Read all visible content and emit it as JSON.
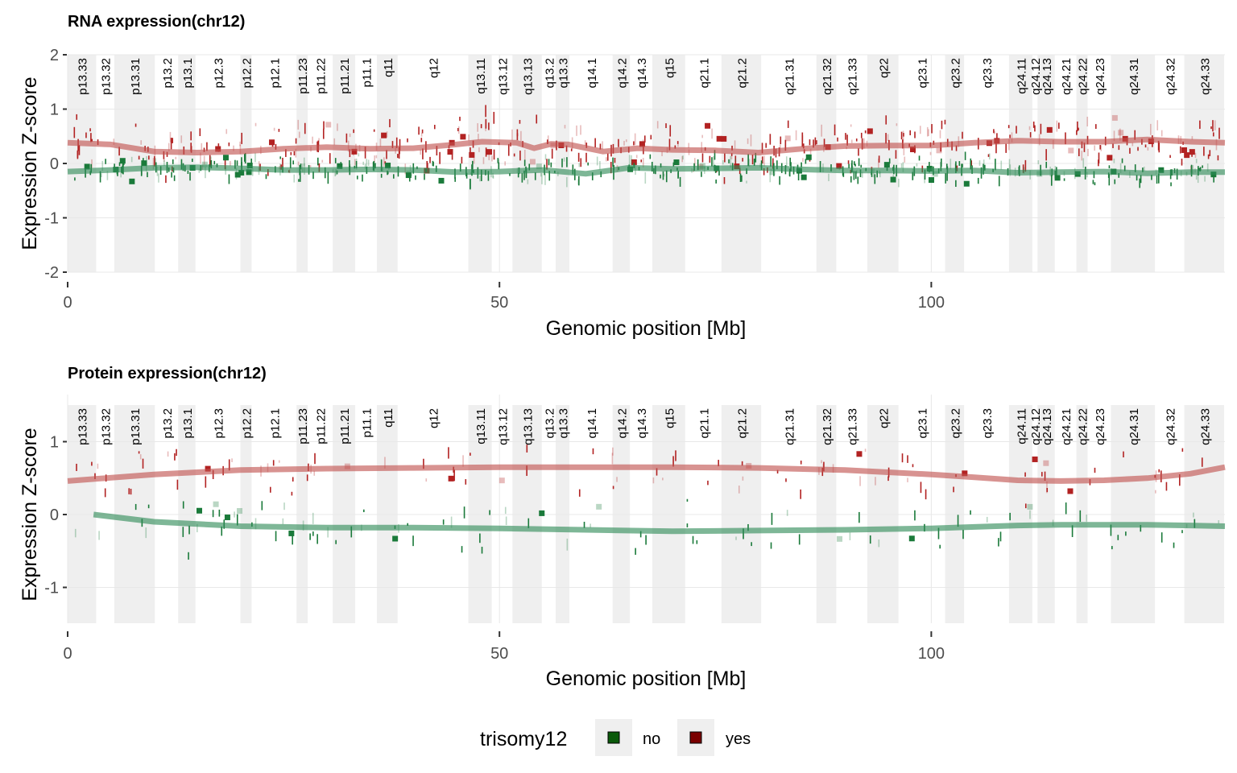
{
  "chart_data": [
    {
      "type": "scatter",
      "id": "rna",
      "title": "RNA expression(chr12)",
      "xlabel": "Genomic position [Mb]",
      "ylabel": "Expression Z-score",
      "xlim": [
        0,
        134
      ],
      "ylim": [
        -2,
        2
      ],
      "xticks": [
        0,
        50,
        100
      ],
      "yticks": [
        -2,
        -1,
        0,
        1,
        2
      ],
      "grid": true,
      "smooth_lines": [
        {
          "name": "yes",
          "color": "#c0504d",
          "x": [
            0,
            5,
            10,
            15,
            20,
            25,
            30,
            35,
            40,
            45,
            48,
            52,
            54,
            56,
            58,
            62,
            66,
            70,
            75,
            80,
            85,
            90,
            95,
            100,
            105,
            110,
            115,
            120,
            125,
            130,
            134
          ],
          "y": [
            0.38,
            0.35,
            0.22,
            0.2,
            0.22,
            0.27,
            0.3,
            0.27,
            0.28,
            0.35,
            0.4,
            0.38,
            0.28,
            0.36,
            0.35,
            0.22,
            0.28,
            0.25,
            0.24,
            0.2,
            0.27,
            0.32,
            0.33,
            0.33,
            0.38,
            0.42,
            0.4,
            0.4,
            0.44,
            0.4,
            0.38
          ]
        },
        {
          "name": "no",
          "color": "#2e8b57",
          "x": [
            0,
            5,
            10,
            15,
            20,
            25,
            30,
            35,
            40,
            45,
            50,
            55,
            60,
            65,
            70,
            75,
            80,
            85,
            90,
            95,
            100,
            105,
            110,
            115,
            120,
            125,
            130,
            134
          ],
          "y": [
            -0.15,
            -0.12,
            -0.08,
            -0.07,
            -0.09,
            -0.12,
            -0.12,
            -0.11,
            -0.12,
            -0.16,
            -0.15,
            -0.12,
            -0.19,
            -0.08,
            -0.1,
            -0.09,
            -0.08,
            -0.11,
            -0.13,
            -0.13,
            -0.14,
            -0.13,
            -0.17,
            -0.16,
            -0.15,
            -0.18,
            -0.16,
            -0.16
          ]
        }
      ]
    },
    {
      "type": "scatter",
      "id": "protein",
      "title": "Protein expression(chr12)",
      "xlabel": "Genomic position [Mb]",
      "ylabel": "Expression Z-score",
      "xlim": [
        0,
        134
      ],
      "ylim": [
        -1.5,
        1.6
      ],
      "xticks": [
        0,
        50,
        100
      ],
      "yticks": [
        -1,
        0,
        1
      ],
      "grid": true,
      "smooth_lines": [
        {
          "name": "yes",
          "color": "#c0504d",
          "x": [
            0,
            10,
            20,
            30,
            40,
            50,
            60,
            70,
            80,
            90,
            100,
            105,
            110,
            115,
            120,
            125,
            130,
            134
          ],
          "y": [
            0.46,
            0.55,
            0.61,
            0.63,
            0.64,
            0.65,
            0.65,
            0.65,
            0.64,
            0.61,
            0.55,
            0.51,
            0.47,
            0.46,
            0.47,
            0.5,
            0.56,
            0.65
          ]
        },
        {
          "name": "no",
          "color": "#2e8b57",
          "x": [
            3,
            10,
            20,
            30,
            40,
            50,
            60,
            70,
            80,
            90,
            100,
            105,
            110,
            115,
            120,
            125,
            130,
            134
          ],
          "y": [
            0.0,
            -0.1,
            -0.16,
            -0.18,
            -0.18,
            -0.19,
            -0.21,
            -0.23,
            -0.22,
            -0.21,
            -0.19,
            -0.17,
            -0.15,
            -0.14,
            -0.14,
            -0.14,
            -0.15,
            -0.16
          ]
        }
      ]
    }
  ],
  "cytobands": [
    {
      "name": "p13.33",
      "start": 0.0,
      "end": 3.3,
      "shaded": true
    },
    {
      "name": "p13.32",
      "start": 3.3,
      "end": 5.4,
      "shaded": false
    },
    {
      "name": "p13.31",
      "start": 5.4,
      "end": 10.1,
      "shaded": true
    },
    {
      "name": "p13.2",
      "start": 10.1,
      "end": 12.8,
      "shaded": false
    },
    {
      "name": "p13.1",
      "start": 12.8,
      "end": 14.8,
      "shaded": true
    },
    {
      "name": "p12.3",
      "start": 14.8,
      "end": 20.0,
      "shaded": false
    },
    {
      "name": "p12.2",
      "start": 20.0,
      "end": 21.3,
      "shaded": true
    },
    {
      "name": "p12.1",
      "start": 21.3,
      "end": 26.5,
      "shaded": false
    },
    {
      "name": "p11.23",
      "start": 26.5,
      "end": 27.8,
      "shaded": true
    },
    {
      "name": "p11.22",
      "start": 27.8,
      "end": 30.7,
      "shaded": false
    },
    {
      "name": "p11.21",
      "start": 30.7,
      "end": 33.3,
      "shaded": true
    },
    {
      "name": "p11.1",
      "start": 33.3,
      "end": 35.8,
      "shaded": false
    },
    {
      "name": "q11",
      "start": 35.8,
      "end": 38.2,
      "shaded": true
    },
    {
      "name": "q12",
      "start": 38.2,
      "end": 46.4,
      "shaded": false
    },
    {
      "name": "q13.11",
      "start": 46.4,
      "end": 49.1,
      "shaded": true
    },
    {
      "name": "q13.12",
      "start": 49.1,
      "end": 51.5,
      "shaded": false
    },
    {
      "name": "q13.13",
      "start": 51.5,
      "end": 54.9,
      "shaded": true
    },
    {
      "name": "q13.2",
      "start": 54.9,
      "end": 56.5,
      "shaded": false
    },
    {
      "name": "q13.3",
      "start": 56.5,
      "end": 58.1,
      "shaded": true
    },
    {
      "name": "q14.1",
      "start": 58.1,
      "end": 63.1,
      "shaded": false
    },
    {
      "name": "q14.2",
      "start": 63.1,
      "end": 65.1,
      "shaded": true
    },
    {
      "name": "q14.3",
      "start": 65.1,
      "end": 67.7,
      "shaded": false
    },
    {
      "name": "q15",
      "start": 67.7,
      "end": 71.5,
      "shaded": true
    },
    {
      "name": "q21.1",
      "start": 71.5,
      "end": 75.7,
      "shaded": false
    },
    {
      "name": "q21.2",
      "start": 75.7,
      "end": 80.3,
      "shaded": true
    },
    {
      "name": "q21.31",
      "start": 80.3,
      "end": 86.7,
      "shaded": false
    },
    {
      "name": "q21.32",
      "start": 86.7,
      "end": 89.0,
      "shaded": true
    },
    {
      "name": "q21.33",
      "start": 89.0,
      "end": 92.6,
      "shaded": false
    },
    {
      "name": "q22",
      "start": 92.6,
      "end": 96.2,
      "shaded": true
    },
    {
      "name": "q23.1",
      "start": 96.2,
      "end": 101.6,
      "shaded": false
    },
    {
      "name": "q23.2",
      "start": 101.6,
      "end": 103.8,
      "shaded": true
    },
    {
      "name": "q23.3",
      "start": 103.8,
      "end": 109.0,
      "shaded": false
    },
    {
      "name": "q24.11",
      "start": 109.0,
      "end": 111.7,
      "shaded": true
    },
    {
      "name": "q24.12",
      "start": 111.7,
      "end": 112.3,
      "shaded": false
    },
    {
      "name": "q24.13",
      "start": 112.3,
      "end": 114.3,
      "shaded": true
    },
    {
      "name": "q24.21",
      "start": 114.3,
      "end": 116.8,
      "shaded": false
    },
    {
      "name": "q24.22",
      "start": 116.8,
      "end": 118.1,
      "shaded": true
    },
    {
      "name": "q24.23",
      "start": 118.1,
      "end": 120.8,
      "shaded": false
    },
    {
      "name": "q24.31",
      "start": 120.8,
      "end": 125.9,
      "shaded": true
    },
    {
      "name": "q24.32",
      "start": 125.9,
      "end": 129.3,
      "shaded": false
    },
    {
      "name": "q24.33",
      "start": 129.3,
      "end": 133.9,
      "shaded": true
    }
  ],
  "legend": {
    "title": "trisomy12",
    "placement": "bottom",
    "items": [
      {
        "label": "no",
        "color": "#0b5a0b"
      },
      {
        "label": "yes",
        "color": "#7a0000"
      }
    ]
  },
  "colors": {
    "yes_points": "#b22222",
    "no_points": "#1a7a3a",
    "band_shade": "#efefef",
    "grid": "#e8e8e8"
  }
}
